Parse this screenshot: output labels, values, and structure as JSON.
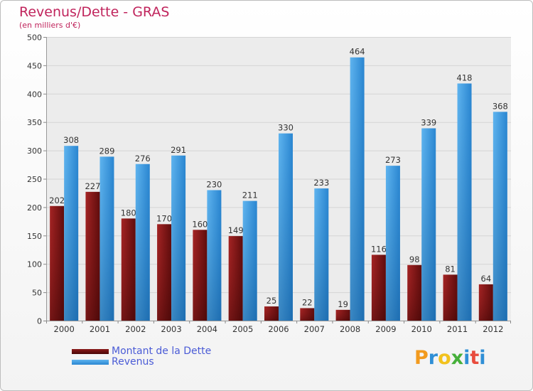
{
  "chart_data": {
    "type": "bar",
    "title": "Revenus/Dette - GRAS",
    "subtitle": "(en milliers d'€)",
    "categories": [
      "2000",
      "2001",
      "2002",
      "2003",
      "2004",
      "2005",
      "2006",
      "2007",
      "2008",
      "2009",
      "2010",
      "2011",
      "2012"
    ],
    "series": [
      {
        "name": "Montant de la Dette",
        "color": "#8b1a1a",
        "values": [
          202,
          227,
          180,
          170,
          160,
          149,
          25,
          22,
          19,
          116,
          98,
          81,
          64
        ]
      },
      {
        "name": "Revenus",
        "color": "#3f9de3",
        "values": [
          308,
          289,
          276,
          291,
          230,
          211,
          330,
          233,
          464,
          273,
          339,
          418,
          368
        ]
      }
    ],
    "ylim": [
      0,
      500
    ],
    "yticks": [
      0,
      50,
      100,
      150,
      200,
      250,
      300,
      350,
      400,
      450,
      500
    ],
    "grid": true,
    "legend_position": "bottom-left"
  },
  "logo": {
    "letters": [
      "P",
      "r",
      "o",
      "x",
      "i",
      "t",
      "i"
    ],
    "colors": [
      "#f29a1d",
      "#2f8fd6",
      "#f2c21d",
      "#46b03a",
      "#2f8fd6",
      "#e84c3d",
      "#2f8fd6"
    ]
  }
}
